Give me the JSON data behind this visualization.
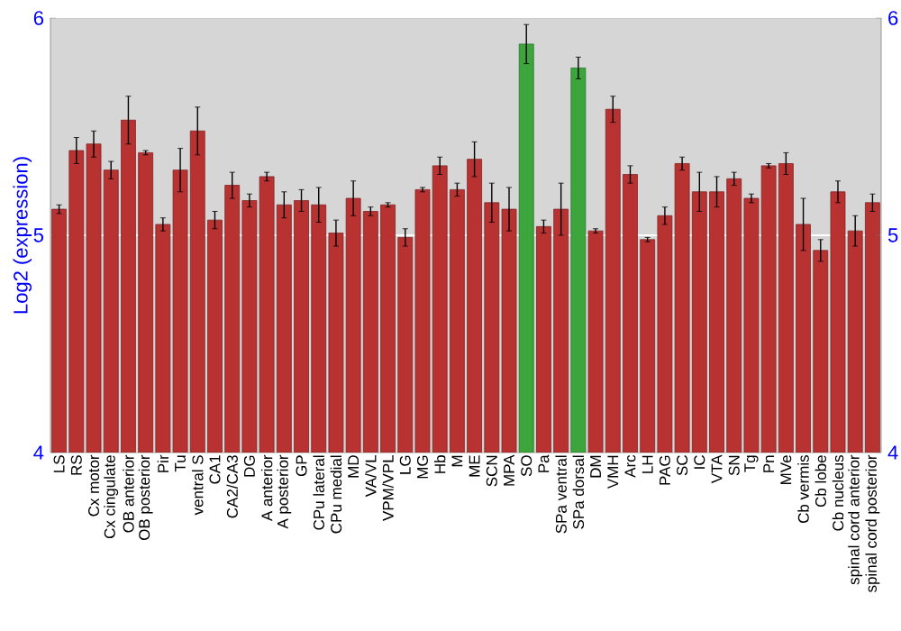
{
  "chart_data": {
    "type": "bar",
    "ylabel": "Log2 (expression)",
    "categories": [
      "LS",
      "RS",
      "Cx motor",
      "Cx cingulate",
      "OB anterior",
      "OB posterior",
      "Pir",
      "Tu",
      "ventral S",
      "CA1",
      "CA2/CA3",
      "DG",
      "A anterior",
      "A posterior",
      "GP",
      "CPu lateral",
      "CPu medial",
      "MD",
      "VA/VL",
      "VPM/VPL",
      "LG",
      "MG",
      "Hb",
      "M",
      "ME",
      "SCN",
      "MPA",
      "SO",
      "Pa",
      "SPa ventral",
      "SPa dorsal",
      "DM",
      "VMH",
      "Arc",
      "LH",
      "PAG",
      "SC",
      "IC",
      "VTA",
      "SN",
      "Tg",
      "Pn",
      "MVe",
      "Cb vermis",
      "Cb lobe",
      "Cb nucleus",
      "spinal cord anterior",
      "spinal cord posterior"
    ],
    "values": [
      5.12,
      5.39,
      5.42,
      5.3,
      5.53,
      5.38,
      5.05,
      5.3,
      5.48,
      5.07,
      5.23,
      5.16,
      5.27,
      5.14,
      5.16,
      5.14,
      5.01,
      5.17,
      5.11,
      5.14,
      4.99,
      5.21,
      5.32,
      5.21,
      5.35,
      5.15,
      5.12,
      5.88,
      5.04,
      5.12,
      5.77,
      5.02,
      5.58,
      5.28,
      4.98,
      5.09,
      5.33,
      5.2,
      5.2,
      5.26,
      5.17,
      5.32,
      5.33,
      5.05,
      4.93,
      5.2,
      5.02,
      5.15
    ],
    "errors": [
      0.02,
      0.06,
      0.06,
      0.04,
      0.11,
      0.01,
      0.03,
      0.1,
      0.11,
      0.04,
      0.06,
      0.03,
      0.02,
      0.06,
      0.05,
      0.08,
      0.06,
      0.08,
      0.02,
      0.01,
      0.04,
      0.01,
      0.04,
      0.03,
      0.08,
      0.09,
      0.1,
      0.09,
      0.03,
      0.12,
      0.05,
      0.01,
      0.06,
      0.04,
      0.01,
      0.04,
      0.03,
      0.09,
      0.07,
      0.03,
      0.02,
      0.01,
      0.05,
      0.12,
      0.05,
      0.05,
      0.07,
      0.04
    ],
    "colors": [
      "#b83232",
      "#b83232",
      "#b83232",
      "#b83232",
      "#b83232",
      "#b83232",
      "#b83232",
      "#b83232",
      "#b83232",
      "#b83232",
      "#b83232",
      "#b83232",
      "#b83232",
      "#b83232",
      "#b83232",
      "#b83232",
      "#b83232",
      "#b83232",
      "#b83232",
      "#b83232",
      "#b83232",
      "#b83232",
      "#b83232",
      "#b83232",
      "#b83232",
      "#b83232",
      "#b83232",
      "#3ca63c",
      "#b83232",
      "#b83232",
      "#3ca63c",
      "#b83232",
      "#b83232",
      "#b83232",
      "#b83232",
      "#b83232",
      "#b83232",
      "#b83232",
      "#b83232",
      "#b83232",
      "#b83232",
      "#b83232",
      "#b83232",
      "#b83232",
      "#b83232",
      "#b83232",
      "#b83232",
      "#b83232"
    ],
    "ylim": [
      4,
      6
    ],
    "yticks": [
      4,
      5,
      6
    ],
    "y2lim": [
      4,
      6
    ],
    "y2ticks": [
      4,
      5,
      6
    ],
    "grid": "y"
  }
}
